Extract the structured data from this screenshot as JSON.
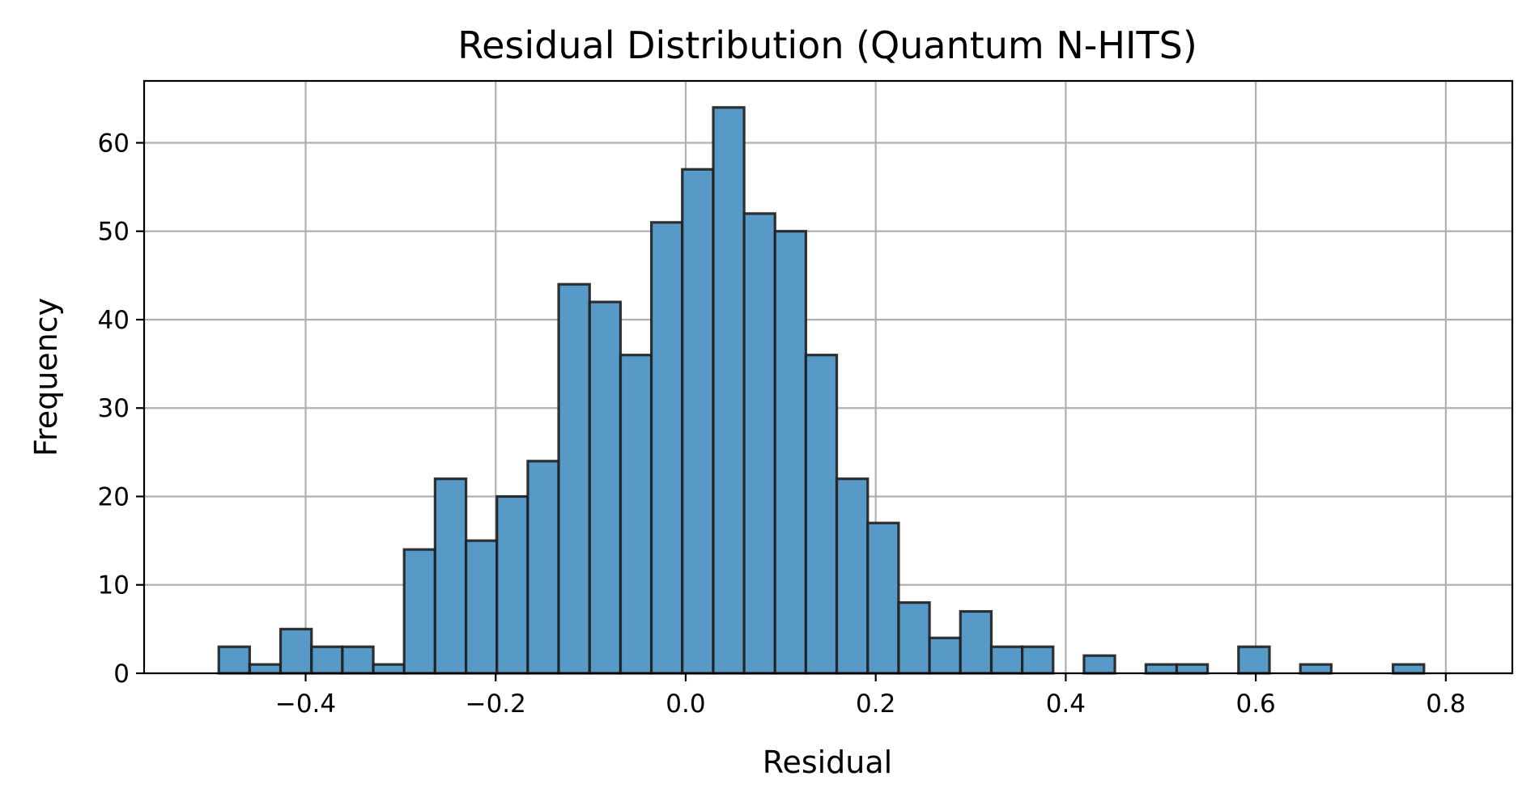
{
  "chart_data": {
    "type": "bar",
    "title": "Residual Distribution (Quantum N-HITS)",
    "xlabel": "Residual",
    "ylabel": "Frequency",
    "xlim": [
      -0.57,
      0.87
    ],
    "ylim": [
      0,
      67
    ],
    "grid": true,
    "x_ticks": [
      -0.4,
      -0.2,
      0.0,
      0.2,
      0.4,
      0.6,
      0.8
    ],
    "x_tick_labels": [
      "−0.4",
      "−0.2",
      "0.0",
      "0.2",
      "0.4",
      "0.6",
      "0.8"
    ],
    "y_ticks": [
      0,
      10,
      20,
      30,
      40,
      50,
      60
    ],
    "y_tick_labels": [
      "0",
      "10",
      "20",
      "30",
      "40",
      "50",
      "60"
    ],
    "bar_color": "#5799c7",
    "edge_color": "#1f1f1f",
    "bin_edges": [
      -0.4914,
      -0.4589,
      -0.4264,
      -0.3938,
      -0.3613,
      -0.3288,
      -0.2963,
      -0.2638,
      -0.2312,
      -0.1987,
      -0.1662,
      -0.1337,
      -0.1011,
      -0.0686,
      -0.0361,
      -0.0036,
      0.029,
      0.0615,
      0.094,
      0.1265,
      0.159,
      0.1916,
      0.2241,
      0.2566,
      0.2891,
      0.3217,
      0.3542,
      0.3867,
      0.4192,
      0.4517,
      0.4843,
      0.5168,
      0.5493,
      0.5818,
      0.6144,
      0.6469,
      0.6794,
      0.7119,
      0.7444,
      0.777,
      0.8095
    ],
    "values": [
      3,
      1,
      5,
      3,
      3,
      1,
      14,
      22,
      15,
      20,
      24,
      44,
      42,
      36,
      51,
      57,
      64,
      52,
      50,
      36,
      22,
      17,
      8,
      4,
      7,
      3,
      3,
      0,
      2,
      0,
      1,
      1,
      0,
      3,
      0,
      1,
      0,
      0,
      1,
      0
    ]
  }
}
